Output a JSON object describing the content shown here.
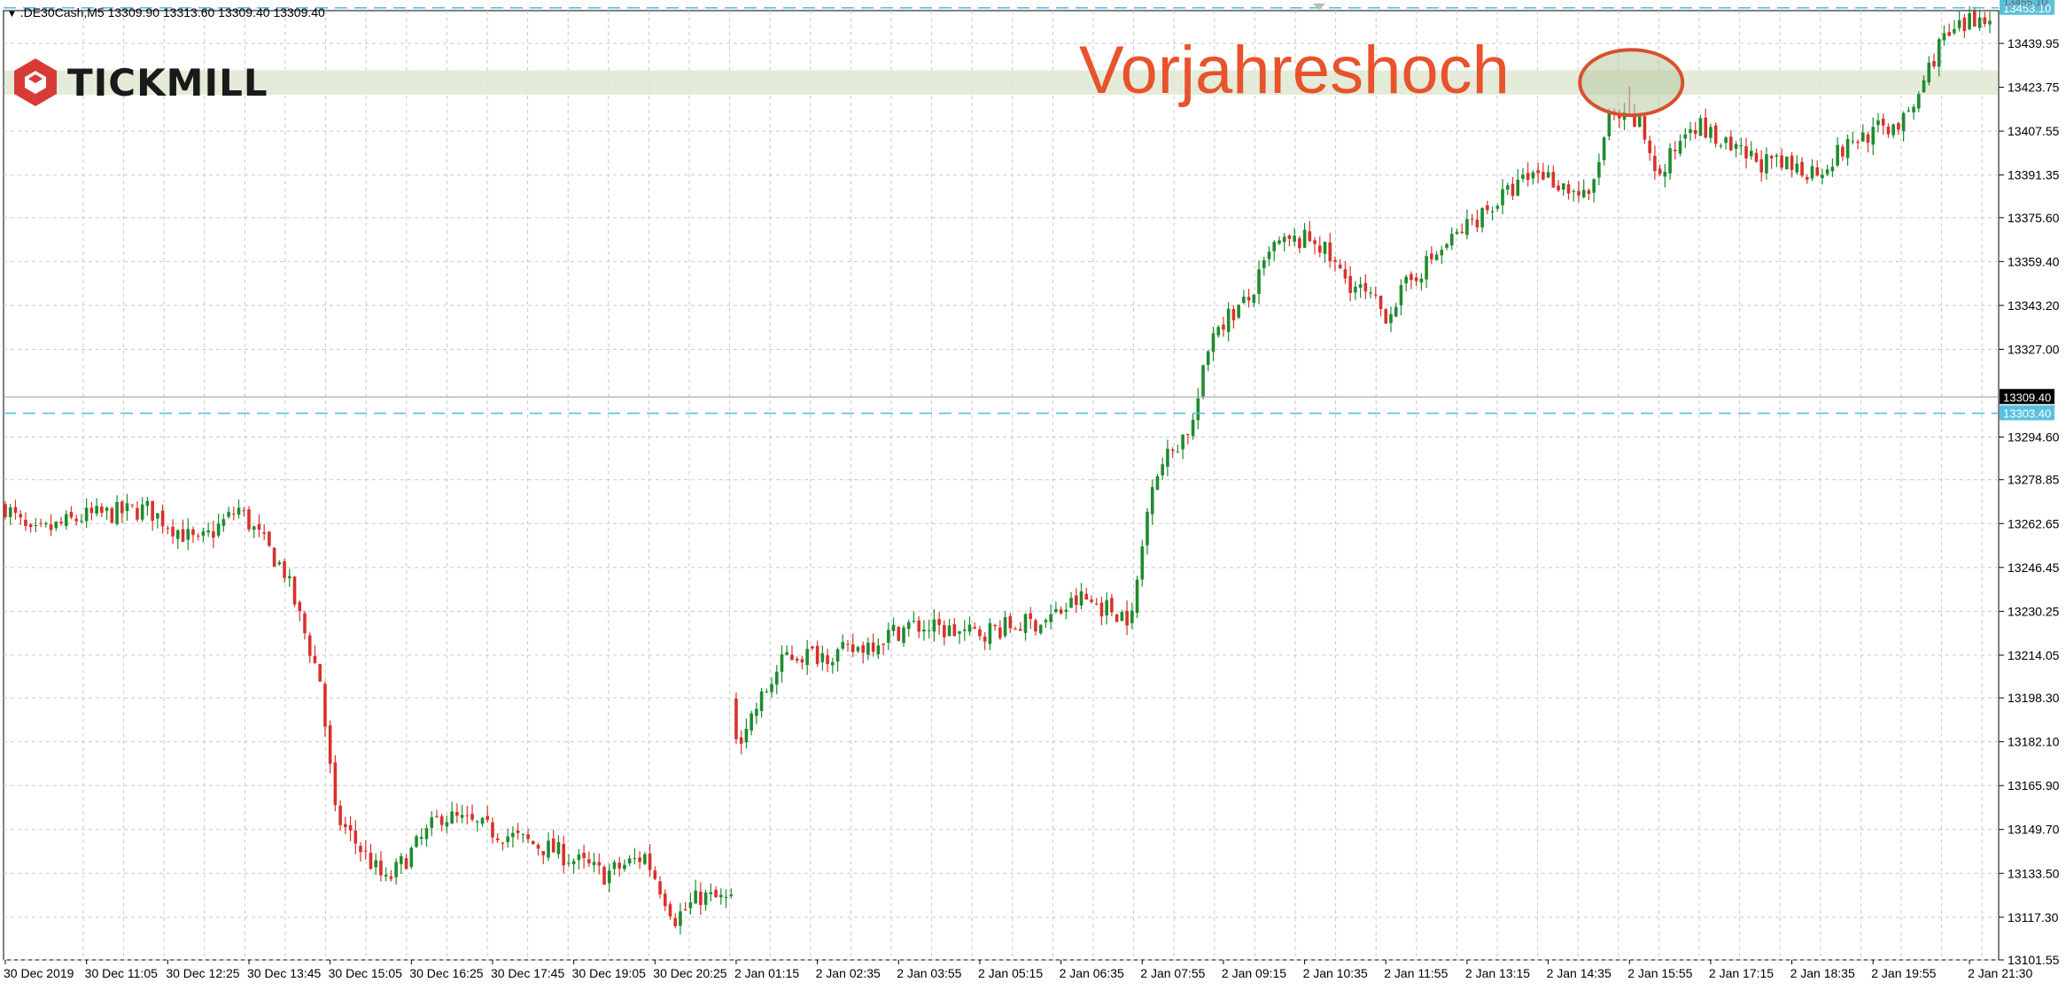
{
  "header": {
    "symbol_line": ".DE30Cash,M5  13309.90 13313.60 13309.40 13309.40",
    "menu_arrow": "triangle-down-icon"
  },
  "logo": {
    "text": "TICKMILL",
    "icon": "tickmill-cube-icon",
    "color": "#d83b36"
  },
  "annotation": {
    "text": "Vorjahreshoch",
    "color": "#e8532c"
  },
  "price_labels": {
    "upper_line": "13453.10",
    "current": "13309.40",
    "lower_line": "13303.40",
    "top_cut": "13455.10"
  },
  "chart_data": {
    "type": "candlestick",
    "symbol": ".DE30Cash",
    "timeframe": "M5",
    "ohlc_header": {
      "open": 13309.9,
      "high": 13313.6,
      "low": 13309.4,
      "close": 13309.4
    },
    "ylim": [
      13101.55,
      13460
    ],
    "y_ticks": [
      13101.55,
      13117.3,
      13133.5,
      13149.7,
      13165.9,
      13182.1,
      13198.3,
      13214.05,
      13230.25,
      13246.45,
      13262.65,
      13278.85,
      13294.6,
      13327.0,
      13343.2,
      13359.4,
      13375.6,
      13391.35,
      13407.55,
      13423.75,
      13439.95
    ],
    "y_tick_labels": [
      "13101.55",
      "13117.30",
      "13133.50",
      "13149.70",
      "13165.90",
      "13182.10",
      "13198.30",
      "13214.05",
      "13230.25",
      "13246.45",
      "13262.65",
      "13278.85",
      "13294.60",
      "13327.00",
      "13343.20",
      "13359.40",
      "13375.60",
      "13391.35",
      "13407.55",
      "13423.75",
      "13439.95"
    ],
    "x_tick_labels": [
      "30 Dec 2019",
      "30 Dec 11:05",
      "30 Dec 12:25",
      "30 Dec 13:45",
      "30 Dec 15:05",
      "30 Dec 16:25",
      "30 Dec 17:45",
      "30 Dec 19:05",
      "30 Dec 20:25",
      "2 Jan 01:15",
      "2 Jan 02:35",
      "2 Jan 03:55",
      "2 Jan 05:15",
      "2 Jan 06:35",
      "2 Jan 07:55",
      "2 Jan 09:15",
      "2 Jan 10:35",
      "2 Jan 11:55",
      "2 Jan 13:15",
      "2 Jan 14:35",
      "2 Jan 15:55",
      "2 Jan 17:15",
      "2 Jan 18:35",
      "2 Jan 19:55",
      "2 Jan 21:30"
    ],
    "x_tick_index": [
      0,
      16,
      32,
      48,
      64,
      80,
      96,
      112,
      128,
      144,
      160,
      176,
      192,
      208,
      224,
      240,
      256,
      272,
      288,
      304,
      320,
      336,
      352,
      368,
      387
    ],
    "n_candles": 392,
    "gap_after_index": 143,
    "hlines": [
      {
        "value": 13453.1,
        "style": "dashed",
        "color": "#5bc0de",
        "label": "13453.10"
      },
      {
        "value": 13303.4,
        "style": "dashed",
        "color": "#5bc0de",
        "label": "13303.40"
      },
      {
        "value": 13309.4,
        "style": "solid",
        "color": "#999999",
        "label": "13309.40"
      }
    ],
    "zone": {
      "from": 13421.0,
      "to": 13430.0,
      "color": "#dfe9d2"
    },
    "highlight_index": 320,
    "highlight_price": 13424,
    "anchors": [
      [
        0,
        13269
      ],
      [
        5,
        13258
      ],
      [
        15,
        13265
      ],
      [
        28,
        13268
      ],
      [
        38,
        13255
      ],
      [
        46,
        13268
      ],
      [
        55,
        13245
      ],
      [
        62,
        13205
      ],
      [
        65,
        13155
      ],
      [
        75,
        13130
      ],
      [
        86,
        13155
      ],
      [
        98,
        13148
      ],
      [
        108,
        13142
      ],
      [
        118,
        13133
      ],
      [
        126,
        13140
      ],
      [
        132,
        13117
      ],
      [
        137,
        13125
      ],
      [
        143,
        13123
      ],
      [
        144,
        13182
      ],
      [
        154,
        13214
      ],
      [
        166,
        13215
      ],
      [
        178,
        13225
      ],
      [
        190,
        13222
      ],
      [
        205,
        13227
      ],
      [
        212,
        13235
      ],
      [
        222,
        13228
      ],
      [
        226,
        13280
      ],
      [
        234,
        13300
      ],
      [
        238,
        13335
      ],
      [
        245,
        13345
      ],
      [
        250,
        13365
      ],
      [
        258,
        13368
      ],
      [
        263,
        13355
      ],
      [
        272,
        13340
      ],
      [
        278,
        13355
      ],
      [
        290,
        13376
      ],
      [
        302,
        13393
      ],
      [
        312,
        13382
      ],
      [
        316,
        13412
      ],
      [
        322,
        13410
      ],
      [
        326,
        13390
      ],
      [
        332,
        13412
      ],
      [
        340,
        13400
      ],
      [
        348,
        13395
      ],
      [
        357,
        13393
      ],
      [
        365,
        13405
      ],
      [
        375,
        13412
      ],
      [
        381,
        13440
      ],
      [
        391,
        13452
      ]
    ],
    "colors": {
      "up": "#1e8b2f",
      "down": "#d9312b",
      "grid": "#c9c9c9"
    },
    "series": []
  }
}
